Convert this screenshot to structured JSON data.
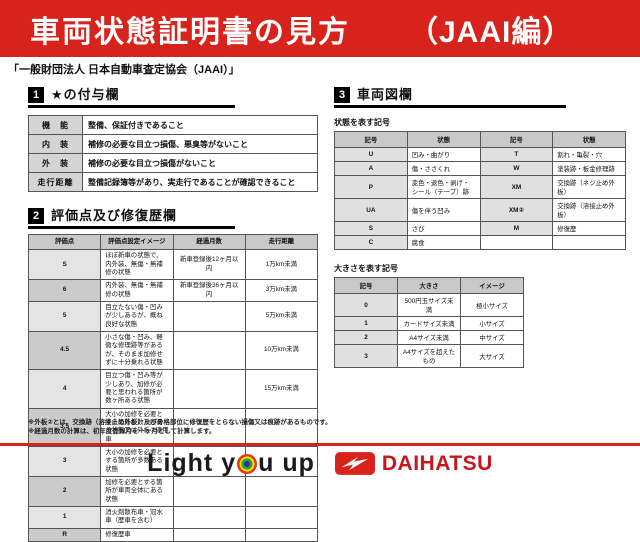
{
  "banner": {
    "title": "車両状態証明書の見方",
    "edition": "（JAAI編）"
  },
  "subtitle": "「一般財団法人 日本自動車査定協会（JAAI）」",
  "sections": {
    "s1": {
      "number": "1",
      "title": "★の付与欄",
      "rows": [
        [
          "機　能",
          "整備、保証付きであること"
        ],
        [
          "内　装",
          "補修の必要な目立つ損傷、悪臭等がないこと"
        ],
        [
          "外　装",
          "補修の必要な目立つ損傷がないこと"
        ],
        [
          "走行距離",
          "整備記録簿等があり、実走行であることが確認できること"
        ]
      ]
    },
    "s2": {
      "number": "2",
      "title": "評価点及び修復歴欄",
      "headers": [
        "評価点",
        "評価点設定イメージ",
        "経過月数",
        "走行距離"
      ],
      "rows": [
        [
          "S",
          "ほぼ新車の状態で、内外装、無傷・無補修の状態",
          "新車登録後12ヶ月以内",
          "1万km未満"
        ],
        [
          "6",
          "内外装、無傷・無補修の状態",
          "新車登録後36ヶ月以内",
          "3万km未満"
        ],
        [
          "5",
          "目立たない傷・凹みが少しあるが、概ね良好な状態",
          "",
          "5万km未満"
        ],
        [
          "4.5",
          "小さな傷・凹み、軽微な修理跡等があるが、そのまま加修せずに十分乗れる状態",
          "",
          "10万km未満"
        ],
        [
          "4",
          "目立つ傷・凹み等が少しあり、加修が必要と思われる箇所が数ヶ所ある状態",
          "",
          "15万km未満"
        ],
        [
          "3.5",
          "大小の加修を必要とする箇所が数ヶ所ある状態又は外板②適用車",
          "",
          ""
        ],
        [
          "3",
          "大小の加修を必要とする箇所が多数ある状態",
          "",
          ""
        ],
        [
          "2",
          "加修を必要とする箇所が車両全体にある状態",
          "",
          ""
        ],
        [
          "1",
          "消火剤散布車・冠水車（歴車を含む）",
          "",
          ""
        ],
        [
          "R",
          "修復歴車",
          "",
          ""
        ]
      ]
    },
    "s3": {
      "number": "3",
      "title": "車両図欄",
      "state_label": "状態を表す記号",
      "state_headers": [
        "記号",
        "状態",
        "記号",
        "状態"
      ],
      "state_rows": [
        [
          "U",
          "凹み・曲がり",
          "T",
          "割れ・亀裂・穴"
        ],
        [
          "A",
          "傷・ささくれ",
          "W",
          "塗装跡・板金修理跡"
        ],
        [
          "P",
          "変色・退色・剥げ・シール（テープ）跡",
          "XM",
          "交換跡（ネジ止め外板）"
        ],
        [
          "UA",
          "傷を伴う凹み",
          "XM②",
          "交換跡（溶接止め外板）"
        ],
        [
          "S",
          "さび",
          "M",
          "修復歴"
        ],
        [
          "C",
          "腐食",
          "",
          ""
        ]
      ],
      "size_label": "大きさを表す記号",
      "size_headers": [
        "記号",
        "大きさ",
        "イメージ"
      ],
      "size_rows": [
        [
          "0",
          "500円玉サイズ未満",
          "極小サイズ"
        ],
        [
          "1",
          "カードサイズ未満",
          "小サイズ"
        ],
        [
          "2",
          "A4サイズ未満",
          "中サイズ"
        ],
        [
          "3",
          "A4サイズを超えたもの",
          "大サイズ"
        ]
      ]
    }
  },
  "notes": [
    "※外板②とは、交換跡（溶接止め外板）及び骨格部位に修復歴をとらない損傷又は痕跡があるものです。",
    "※経過月数の計算は、初年度登録月を一ヶ月として計算します。"
  ],
  "footer": {
    "slogan_left": "Light y",
    "slogan_right": "u up",
    "brand": "DAIHATSU"
  },
  "colors": {
    "accent_red": "#d8231c",
    "brand_red": "#c8161d"
  }
}
